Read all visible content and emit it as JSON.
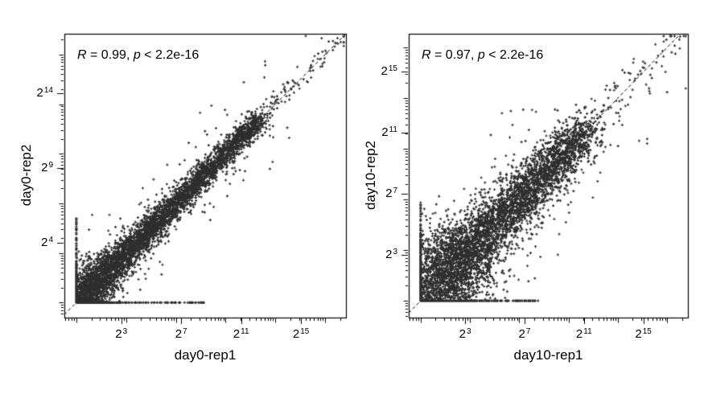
{
  "figure": {
    "background": "#ffffff",
    "point_color": "#2d2d2d",
    "axis_color": "#000000",
    "text_color": "#000000"
  },
  "chart_data": [
    {
      "type": "scatter",
      "panel": "left",
      "xlabel": "day0-rep1",
      "ylabel": "day0-rep2",
      "annotation_segments": [
        "R",
        " = 0.99, ",
        "p",
        " < 2.2e-16"
      ],
      "correlation": 0.99,
      "p_value_text": "< 2.2e-16",
      "x_scale": "log2",
      "y_scale": "log2",
      "tick_base": "2",
      "x_tick_exponents": [
        3,
        7,
        11,
        15
      ],
      "y_tick_exponents": [
        4,
        9,
        14
      ],
      "x_range_exp": [
        -0.8,
        18
      ],
      "y_range_exp": [
        -1,
        18
      ],
      "grid": false,
      "legend": false,
      "identity_line": "dashed y=x",
      "marker": "plus",
      "generator": {
        "seed": 7,
        "n_core": 5200,
        "core_vmax": 12.2,
        "core_pow": 1.6,
        "n_tail": 120,
        "tail_span": 5.6,
        "tail_pow": 1.8,
        "noise_sd": 0.35,
        "low_boost": 1.6,
        "outlier_frac": 0.045,
        "outlier_sd": 1.3,
        "x_spur": {
          "n": 150,
          "max_exp": 5.8,
          "pow": 2.2
        },
        "y_spur": {
          "n": 230,
          "max_exp": 8.8,
          "pow": 2.0
        }
      }
    },
    {
      "type": "scatter",
      "panel": "right",
      "xlabel": "day10-rep1",
      "ylabel": "day10-rep2",
      "annotation_segments": [
        "R",
        " = 0.97, ",
        "p",
        " < 2.2e-16"
      ],
      "correlation": 0.97,
      "p_value_text": "< 2.2e-16",
      "x_scale": "log2",
      "y_scale": "log2",
      "tick_base": "2",
      "x_tick_exponents": [
        3,
        7,
        11,
        15
      ],
      "y_tick_exponents": [
        3,
        7,
        11,
        15
      ],
      "x_range_exp": [
        -0.8,
        18
      ],
      "y_range_exp": [
        -1.1,
        17.5
      ],
      "grid": false,
      "legend": false,
      "identity_line": "dashed y=x",
      "marker": "plus",
      "generator": {
        "seed": 13,
        "n_core": 5600,
        "core_vmax": 11.0,
        "core_pow": 1.6,
        "n_tail": 130,
        "tail_span": 6.6,
        "tail_pow": 1.8,
        "noise_sd": 0.7,
        "low_boost": 2.0,
        "outlier_frac": 0.06,
        "outlier_sd": 1.9,
        "x_spur": {
          "n": 170,
          "max_exp": 6.5,
          "pow": 2.2
        },
        "y_spur": {
          "n": 230,
          "max_exp": 8.0,
          "pow": 2.0
        }
      }
    }
  ]
}
